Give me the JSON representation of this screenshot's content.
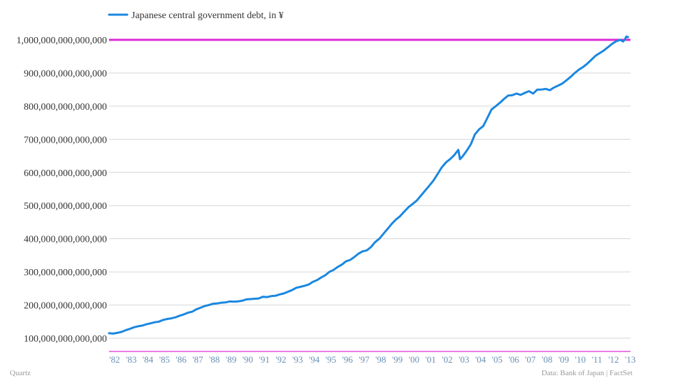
{
  "colors": {
    "line": "#1a87e0",
    "reference_line": "#dd2ad8",
    "grid": "#d6d6d6",
    "x_tick_text": "#6a8fb3"
  },
  "footer": {
    "left": "Quartz",
    "right": "Data: Bank of Japan | FactSet"
  },
  "chart_data": {
    "type": "line",
    "title": "",
    "xlabel": "",
    "ylabel": "",
    "legend": "top-left",
    "grid": true,
    "xlim": [
      1982,
      2013.35
    ],
    "ylim": [
      60000000000000,
      1000000000000000
    ],
    "y_ticks": [
      {
        "value": 100000000000000,
        "label": "100,000,000,000,000"
      },
      {
        "value": 200000000000000,
        "label": "200,000,000,000,000"
      },
      {
        "value": 300000000000000,
        "label": "300,000,000,000,000"
      },
      {
        "value": 400000000000000,
        "label": "400,000,000,000,000"
      },
      {
        "value": 500000000000000,
        "label": "500,000,000,000,000"
      },
      {
        "value": 600000000000000,
        "label": "600,000,000,000,000"
      },
      {
        "value": 700000000000000,
        "label": "700,000,000,000,000"
      },
      {
        "value": 800000000000000,
        "label": "800,000,000,000,000"
      },
      {
        "value": 900000000000000,
        "label": "900,000,000,000,000"
      },
      {
        "value": 1000000000000000,
        "label": "1,000,000,000,000,000"
      }
    ],
    "x_ticks": [
      {
        "value": 1982,
        "label": "'82"
      },
      {
        "value": 1983,
        "label": "'83"
      },
      {
        "value": 1984,
        "label": "'84"
      },
      {
        "value": 1985,
        "label": "'85"
      },
      {
        "value": 1986,
        "label": "'86"
      },
      {
        "value": 1987,
        "label": "'87"
      },
      {
        "value": 1988,
        "label": "'88"
      },
      {
        "value": 1989,
        "label": "'89"
      },
      {
        "value": 1990,
        "label": "'90"
      },
      {
        "value": 1991,
        "label": "'91"
      },
      {
        "value": 1992,
        "label": "'92"
      },
      {
        "value": 1993,
        "label": "'93"
      },
      {
        "value": 1994,
        "label": "'94"
      },
      {
        "value": 1995,
        "label": "'95"
      },
      {
        "value": 1996,
        "label": "'96"
      },
      {
        "value": 1997,
        "label": "'97"
      },
      {
        "value": 1998,
        "label": "'98"
      },
      {
        "value": 1999,
        "label": "'99"
      },
      {
        "value": 2000,
        "label": "'00"
      },
      {
        "value": 2001,
        "label": "'01"
      },
      {
        "value": 2002,
        "label": "'02"
      },
      {
        "value": 2003,
        "label": "'03"
      },
      {
        "value": 2004,
        "label": "'04"
      },
      {
        "value": 2005,
        "label": "'05"
      },
      {
        "value": 2006,
        "label": "'06"
      },
      {
        "value": 2007,
        "label": "'07"
      },
      {
        "value": 2008,
        "label": "'08"
      },
      {
        "value": 2009,
        "label": "'09"
      },
      {
        "value": 2010,
        "label": "'10"
      },
      {
        "value": 2011,
        "label": "'11"
      },
      {
        "value": 2012,
        "label": "'12"
      },
      {
        "value": 2013,
        "label": "'13"
      }
    ],
    "reference_lines": [
      {
        "value": 1000000000000000
      },
      {
        "value": 60000000000000
      }
    ],
    "series": [
      {
        "name": "Japanese central government debt, in ¥",
        "points": [
          [
            1982.0,
            115000000000000
          ],
          [
            1982.25,
            114000000000000
          ],
          [
            1982.5,
            116000000000000
          ],
          [
            1982.75,
            119000000000000
          ],
          [
            1983.0,
            124000000000000
          ],
          [
            1983.25,
            128000000000000
          ],
          [
            1983.5,
            133000000000000
          ],
          [
            1983.75,
            136000000000000
          ],
          [
            1984.0,
            138000000000000
          ],
          [
            1984.25,
            142000000000000
          ],
          [
            1984.5,
            145000000000000
          ],
          [
            1984.75,
            148000000000000
          ],
          [
            1985.0,
            150000000000000
          ],
          [
            1985.25,
            155000000000000
          ],
          [
            1985.5,
            158000000000000
          ],
          [
            1985.75,
            160000000000000
          ],
          [
            1986.0,
            163000000000000
          ],
          [
            1986.25,
            168000000000000
          ],
          [
            1986.5,
            172000000000000
          ],
          [
            1986.75,
            177000000000000
          ],
          [
            1987.0,
            180000000000000
          ],
          [
            1987.25,
            187000000000000
          ],
          [
            1987.5,
            192000000000000
          ],
          [
            1987.75,
            197000000000000
          ],
          [
            1988.0,
            200000000000000
          ],
          [
            1988.25,
            204000000000000
          ],
          [
            1988.5,
            205000000000000
          ],
          [
            1988.75,
            207000000000000
          ],
          [
            1989.0,
            208000000000000
          ],
          [
            1989.25,
            211000000000000
          ],
          [
            1989.5,
            210000000000000
          ],
          [
            1989.75,
            211000000000000
          ],
          [
            1990.0,
            213000000000000
          ],
          [
            1990.25,
            217000000000000
          ],
          [
            1990.5,
            218000000000000
          ],
          [
            1990.75,
            219000000000000
          ],
          [
            1991.0,
            220000000000000
          ],
          [
            1991.25,
            225000000000000
          ],
          [
            1991.5,
            224000000000000
          ],
          [
            1991.75,
            227000000000000
          ],
          [
            1992.0,
            228000000000000
          ],
          [
            1992.25,
            232000000000000
          ],
          [
            1992.5,
            235000000000000
          ],
          [
            1992.75,
            240000000000000
          ],
          [
            1993.0,
            245000000000000
          ],
          [
            1993.25,
            252000000000000
          ],
          [
            1993.5,
            255000000000000
          ],
          [
            1993.75,
            258000000000000
          ],
          [
            1994.0,
            262000000000000
          ],
          [
            1994.25,
            270000000000000
          ],
          [
            1994.5,
            275000000000000
          ],
          [
            1994.75,
            283000000000000
          ],
          [
            1995.0,
            290000000000000
          ],
          [
            1995.25,
            300000000000000
          ],
          [
            1995.5,
            306000000000000
          ],
          [
            1995.75,
            315000000000000
          ],
          [
            1996.0,
            322000000000000
          ],
          [
            1996.25,
            332000000000000
          ],
          [
            1996.5,
            336000000000000
          ],
          [
            1996.75,
            345000000000000
          ],
          [
            1997.0,
            355000000000000
          ],
          [
            1997.25,
            362000000000000
          ],
          [
            1997.5,
            365000000000000
          ],
          [
            1997.75,
            375000000000000
          ],
          [
            1998.0,
            390000000000000
          ],
          [
            1998.25,
            400000000000000
          ],
          [
            1998.5,
            415000000000000
          ],
          [
            1998.75,
            430000000000000
          ],
          [
            1999.0,
            445000000000000
          ],
          [
            1999.25,
            458000000000000
          ],
          [
            1999.5,
            468000000000000
          ],
          [
            1999.75,
            482000000000000
          ],
          [
            2000.0,
            495000000000000
          ],
          [
            2000.25,
            505000000000000
          ],
          [
            2000.5,
            515000000000000
          ],
          [
            2000.75,
            530000000000000
          ],
          [
            2001.0,
            545000000000000
          ],
          [
            2001.25,
            560000000000000
          ],
          [
            2001.5,
            575000000000000
          ],
          [
            2001.75,
            595000000000000
          ],
          [
            2002.0,
            615000000000000
          ],
          [
            2002.25,
            630000000000000
          ],
          [
            2002.5,
            640000000000000
          ],
          [
            2002.75,
            652000000000000
          ],
          [
            2003.0,
            668000000000000
          ],
          [
            2003.1,
            640000000000000
          ],
          [
            2003.25,
            648000000000000
          ],
          [
            2003.5,
            665000000000000
          ],
          [
            2003.75,
            685000000000000
          ],
          [
            2004.0,
            715000000000000
          ],
          [
            2004.25,
            730000000000000
          ],
          [
            2004.5,
            740000000000000
          ],
          [
            2004.75,
            765000000000000
          ],
          [
            2005.0,
            790000000000000
          ],
          [
            2005.25,
            800000000000000
          ],
          [
            2005.5,
            810000000000000
          ],
          [
            2005.75,
            822000000000000
          ],
          [
            2006.0,
            832000000000000
          ],
          [
            2006.25,
            833000000000000
          ],
          [
            2006.5,
            838000000000000
          ],
          [
            2006.75,
            834000000000000
          ],
          [
            2007.0,
            840000000000000
          ],
          [
            2007.25,
            845000000000000
          ],
          [
            2007.5,
            838000000000000
          ],
          [
            2007.75,
            850000000000000
          ],
          [
            2008.0,
            850000000000000
          ],
          [
            2008.25,
            852000000000000
          ],
          [
            2008.5,
            848000000000000
          ],
          [
            2008.75,
            856000000000000
          ],
          [
            2009.0,
            862000000000000
          ],
          [
            2009.25,
            868000000000000
          ],
          [
            2009.5,
            878000000000000
          ],
          [
            2009.75,
            888000000000000
          ],
          [
            2010.0,
            900000000000000
          ],
          [
            2010.25,
            910000000000000
          ],
          [
            2010.5,
            918000000000000
          ],
          [
            2010.75,
            928000000000000
          ],
          [
            2011.0,
            940000000000000
          ],
          [
            2011.25,
            952000000000000
          ],
          [
            2011.5,
            960000000000000
          ],
          [
            2011.75,
            968000000000000
          ],
          [
            2012.0,
            978000000000000
          ],
          [
            2012.25,
            988000000000000
          ],
          [
            2012.5,
            996000000000000
          ],
          [
            2012.75,
            1000000000000000
          ],
          [
            2012.9,
            995000000000000
          ],
          [
            2013.0,
            1000000000000000
          ],
          [
            2013.1,
            1010000000000000
          ],
          [
            2013.2,
            1008000000000000
          ]
        ]
      }
    ]
  }
}
